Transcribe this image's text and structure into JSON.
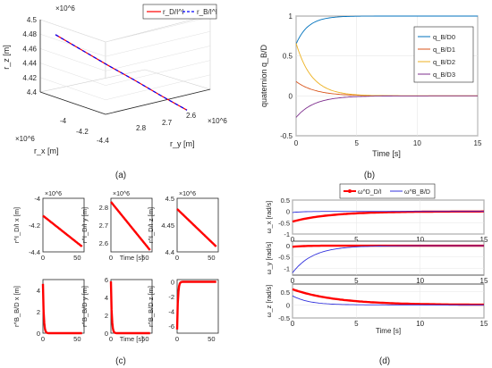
{
  "captions": {
    "a": "(a)",
    "b": "(b)",
    "c": "(c)",
    "d": "(d)"
  },
  "chart_data": [
    {
      "id": "a",
      "type": "line",
      "projection": "3d",
      "zlabel": "r_z [m]",
      "xlabel": "r_x [m]",
      "ylabel": "r_y [m]",
      "exponent": "×10^6",
      "z_ticks": [
        "4.4",
        "4.42",
        "4.44",
        "4.46",
        "4.48",
        "4.5"
      ],
      "zlim": [
        4.4,
        4.5
      ],
      "x_ticks": [
        "-4.4",
        "-4.2",
        "-4"
      ],
      "y_ticks": [
        "2.6",
        "2.7",
        "2.8"
      ],
      "legend": {
        "position": "top-right",
        "entries": [
          "r_D/I^I",
          "r_B/I^I"
        ]
      },
      "series": [
        {
          "name": "r_D/I^I",
          "color": "#ff0000",
          "style": "solid",
          "z": [
            4.481,
            4.467,
            4.453,
            4.44,
            4.426,
            4.413
          ]
        },
        {
          "name": "r_B/I^I",
          "color": "#0000ff",
          "style": "dashed",
          "z": [
            4.481,
            4.467,
            4.453,
            4.44,
            4.426,
            4.413
          ]
        }
      ],
      "grid": true
    },
    {
      "id": "b",
      "type": "line",
      "xlabel": "Time [s]",
      "ylabel": "quaternion q_B/D",
      "xlim": [
        0,
        15
      ],
      "ylim": [
        -0.5,
        1
      ],
      "x_ticks": [
        "0",
        "5",
        "10",
        "15"
      ],
      "y_ticks": [
        "-0.5",
        "0",
        "0.5",
        "1"
      ],
      "legend": {
        "position": "top-right",
        "entries": [
          "q_B/D0",
          "q_B/D1",
          "q_B/D2",
          "q_B/D3"
        ]
      },
      "series": [
        {
          "name": "q_B/D0",
          "color": "#0072bd",
          "start": 0.65,
          "end": 1.0,
          "tau": 1.0
        },
        {
          "name": "q_B/D1",
          "color": "#d95319",
          "start": 0.18,
          "end": 0.0,
          "tau": 1.6
        },
        {
          "name": "q_B/D2",
          "color": "#edb120",
          "start": 0.66,
          "end": 0.0,
          "tau": 1.3
        },
        {
          "name": "q_B/D3",
          "color": "#7e2f8e",
          "start": -0.27,
          "end": 0.0,
          "tau": 1.5
        }
      ],
      "grid": true
    },
    {
      "id": "c",
      "type": "line",
      "layout": "2x3",
      "xlim": [
        0,
        60
      ],
      "x_ticks": [
        "0",
        "50"
      ],
      "xlabel": "Time [s]",
      "panels": [
        {
          "ylabel": "r^I_D/I x [m]",
          "exponent": "×10^6",
          "y_ticks": [
            "-4",
            "-4.2",
            "-4.4"
          ],
          "ylim": [
            -4.4,
            -4
          ],
          "start": -4.13,
          "end": -4.36
        },
        {
          "ylabel": "r^I_D/I y [m]",
          "exponent": "×10^6",
          "y_ticks": [
            "2.8",
            "2.7",
            "2.6"
          ],
          "ylim": [
            2.55,
            2.85
          ],
          "start": 2.83,
          "end": 2.56
        },
        {
          "ylabel": "r^I_D/I z [m]",
          "exponent": "×10^6",
          "y_ticks": [
            "4.5",
            "4.45",
            "4.4"
          ],
          "ylim": [
            4.4,
            4.5
          ],
          "start": 4.48,
          "end": 4.41
        },
        {
          "ylabel": "r^B_B/D x [m]",
          "y_ticks": [
            "4",
            "2",
            "0"
          ],
          "ylim": [
            0,
            5
          ],
          "start": 4.6,
          "end": 0,
          "tau": 1.2
        },
        {
          "ylabel": "r^B_B/D y [m]",
          "y_ticks": [
            "6",
            "4",
            "2",
            "0"
          ],
          "ylim": [
            0,
            6
          ],
          "start": 5.8,
          "end": 0,
          "tau": 1.2
        },
        {
          "ylabel": "r^B_B/D z [m]",
          "y_ticks": [
            "0",
            "-2",
            "-4",
            "-6"
          ],
          "ylim": [
            -7,
            0.3
          ],
          "start": -6.5,
          "end": 0,
          "tau": 1.2
        }
      ]
    },
    {
      "id": "d",
      "type": "line",
      "layout": "3x1",
      "xlabel": "Time [s]",
      "xlim": [
        0,
        15
      ],
      "x_ticks": [
        "0",
        "5",
        "10",
        "15"
      ],
      "legend": {
        "position": "top",
        "entries": [
          "ω^D_D/I",
          "ω^B_B/D"
        ]
      },
      "panels": [
        {
          "ylabel": "ω_x [rad/s]",
          "y_ticks": [
            "0.5",
            "0",
            "-0.5",
            "-1"
          ],
          "ylim": [
            -1,
            0.5
          ],
          "series": [
            {
              "name": "ω^D_D/I",
              "color": "#ff0000",
              "start": -0.45,
              "end": 0,
              "tau": 3.0
            },
            {
              "name": "ω^B_B/D",
              "color": "#3333dd",
              "start": -0.05,
              "end": 0,
              "tau": 0.8
            }
          ]
        },
        {
          "ylabel": "ω_y [rad/s]",
          "y_ticks": [
            "0",
            "-0.5",
            "-1"
          ],
          "ylim": [
            -1.3,
            0.2
          ],
          "series": [
            {
              "name": "ω^D_D/I",
              "color": "#ff0000",
              "start": -0.05,
              "end": 0,
              "tau": 0.8
            },
            {
              "name": "ω^B_B/D",
              "color": "#3333dd",
              "start": -1.2,
              "end": 0,
              "tau": 1.6
            }
          ]
        },
        {
          "ylabel": "ω_z [rad/s]",
          "y_ticks": [
            "0.5",
            "0",
            "-0.5"
          ],
          "ylim": [
            -0.5,
            0.8
          ],
          "series": [
            {
              "name": "ω^D_D/I",
              "color": "#ff0000",
              "start": 0.6,
              "end": 0,
              "tau": 3.5
            },
            {
              "name": "ω^B_B/D",
              "color": "#3333dd",
              "start": 0.35,
              "end": 0,
              "tau": 1.3
            }
          ]
        }
      ]
    }
  ]
}
